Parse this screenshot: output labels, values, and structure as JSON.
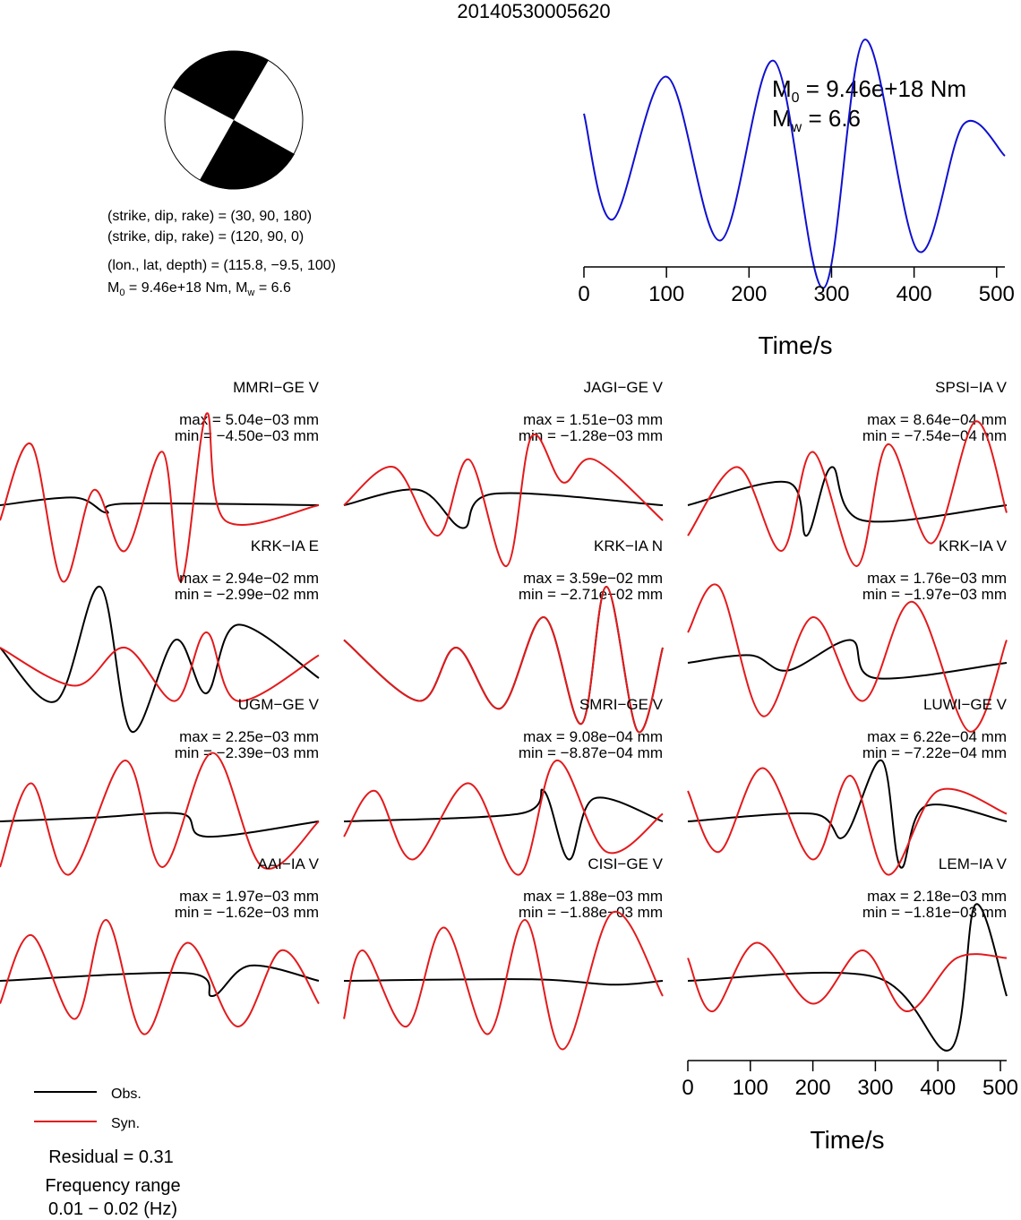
{
  "event_id": "20140530005620",
  "mechanism": {
    "line1": "(strike, dip, rake) = (30, 90, 180)",
    "line2": "(strike, dip, rake) = (120, 90, 0)",
    "location": "(lon., lat, depth) = (115.8, −9.5, 100)",
    "moment": {
      "m0": "M",
      "m0_sub": "0",
      "m0_val": " = 9.46e+18 Nm, ",
      "mw": "M",
      "mw_sub": "w",
      "mw_val": " = 6.6"
    }
  },
  "stf_label": {
    "m0": "M",
    "m0_sub": "0",
    "m0_val": " = 9.46e+18 Nm",
    "mw": "M",
    "mw_sub": "w",
    "mw_val": " = 6.6"
  },
  "legend": {
    "obs": "Obs.",
    "syn": "Syn."
  },
  "residual": "Residual = 0.31",
  "freq_label": "Frequency range",
  "freq_value": "0.01 − 0.02 (Hz)",
  "colors": {
    "obs": "#000000",
    "syn": "#e31a1c",
    "stf": "#1010d0",
    "beachball": "#000000"
  },
  "chart_data": [
    {
      "type": "line",
      "name": "source-time-function",
      "xlabel": "Time/s",
      "xlim": [
        0,
        510
      ],
      "xticks": [
        0,
        100,
        200,
        300,
        400,
        500
      ],
      "series": [
        {
          "x": [
            0,
            35,
            100,
            165,
            230,
            290,
            340,
            405,
            460,
            510
          ],
          "values": [
            0.45,
            -0.55,
            0.8,
            -0.75,
            0.95,
            -1.2,
            1.15,
            -0.85,
            0.35,
            0.05
          ]
        }
      ]
    },
    {
      "type": "line",
      "name": "waveform-fits",
      "xlabel": "Time/s",
      "xlim": [
        0,
        510
      ],
      "xticks": [
        0,
        100,
        200,
        300,
        400,
        500
      ],
      "stations": [
        {
          "label": "MMRI−GE V",
          "max": "max = 5.04e−03 mm",
          "min": "min = −4.50e−03 mm",
          "obs": {
            "x": [
              0,
              120,
              170,
              200,
              510
            ],
            "values": [
              0,
              0.1,
              -0.1,
              0.02,
              0
            ]
          },
          "syn": {
            "x": [
              0,
              50,
              100,
              150,
              200,
              260,
              290,
              330,
              360,
              510
            ],
            "values": [
              -0.2,
              0.8,
              -1.0,
              0.2,
              -0.6,
              0.7,
              -1.0,
              1.2,
              -0.2,
              0
            ]
          }
        },
        {
          "label": "JAGI−GE V",
          "max": "max = 1.51e−03 mm",
          "min": "min = −1.28e−03 mm",
          "obs": {
            "x": [
              0,
              120,
              190,
              240,
              510
            ],
            "values": [
              0,
              0.2,
              -0.3,
              0.15,
              0
            ]
          },
          "syn": {
            "x": [
              0,
              80,
              150,
              200,
              260,
              300,
              350,
              400,
              510
            ],
            "values": [
              0,
              0.5,
              -0.4,
              0.6,
              -0.8,
              0.9,
              0.3,
              0.6,
              -0.2
            ]
          }
        },
        {
          "label": "SPSI−IA V",
          "max": "max = 8.64e−04 mm",
          "min": "min = −7.54e−04 mm",
          "obs": {
            "x": [
              0,
              160,
              190,
              230,
              280,
              510
            ],
            "values": [
              0,
              0.3,
              -0.4,
              0.5,
              -0.2,
              0
            ]
          },
          "syn": {
            "x": [
              0,
              80,
              150,
              200,
              270,
              320,
              390,
              460,
              510
            ],
            "values": [
              -0.4,
              0.5,
              -0.6,
              0.7,
              -0.8,
              0.8,
              -0.5,
              1.1,
              -0.1
            ]
          }
        },
        {
          "label": "KRK−IA E",
          "max": "max = 2.94e−02 mm",
          "min": "min = −2.99e−02 mm",
          "obs": {
            "x": [
              0,
              90,
              160,
              210,
              280,
              330,
              380,
              510
            ],
            "values": [
              0.2,
              -0.5,
              1.0,
              -0.9,
              0.3,
              -0.4,
              0.5,
              -0.2
            ]
          },
          "syn": {
            "x": [
              0,
              120,
              200,
              280,
              330,
              380,
              510
            ],
            "values": [
              0.2,
              -0.3,
              0.2,
              -0.5,
              0.4,
              -0.5,
              0.1
            ]
          }
        },
        {
          "label": "KRK−IA N",
          "max": "max = 3.59e−02 mm",
          "min": "min = −2.71e−02 mm",
          "obs": {
            "x": [
              0,
              120,
              180,
              250,
              320,
              380,
              420,
              470,
              510
            ],
            "values": [
              0.3,
              -0.5,
              0.2,
              -0.6,
              0.6,
              -0.8,
              1.0,
              -0.9,
              0.2
            ]
          },
          "syn": {
            "x": [
              0,
              120,
              180,
              250,
              320,
              380,
              420,
              470,
              510
            ],
            "values": [
              0.3,
              -0.5,
              0.2,
              -0.6,
              0.6,
              -0.8,
              1.0,
              -0.9,
              0.2
            ]
          }
        },
        {
          "label": "KRK−IA V",
          "max": "max = 1.76e−03 mm",
          "min": "min = −1.97e−03 mm",
          "obs": {
            "x": [
              0,
              100,
              160,
              260,
              300,
              510
            ],
            "values": [
              0,
              0.1,
              -0.1,
              0.3,
              -0.2,
              0
            ]
          },
          "syn": {
            "x": [
              0,
              50,
              120,
              200,
              280,
              360,
              450,
              510
            ],
            "values": [
              0.4,
              1.0,
              -0.7,
              0.6,
              -0.5,
              0.8,
              -0.9,
              0.3
            ]
          }
        },
        {
          "label": "UGM−GE V",
          "max": "max = 2.25e−03 mm",
          "min": "min = −2.39e−03 mm",
          "obs": {
            "x": [
              0,
              150,
              290,
              330,
              510
            ],
            "values": [
              0,
              0.05,
              0.1,
              -0.2,
              0
            ]
          },
          "syn": {
            "x": [
              0,
              50,
              110,
              200,
              260,
              340,
              420,
              510
            ],
            "values": [
              -0.6,
              0.5,
              -0.7,
              0.8,
              -0.6,
              0.9,
              -0.6,
              0
            ]
          }
        },
        {
          "label": "SMRI−GE V",
          "max": "max = 9.08e−04 mm",
          "min": "min = −8.87e−04 mm",
          "obs": {
            "x": [
              0,
              280,
              320,
              360,
              400,
              510
            ],
            "values": [
              0,
              0.1,
              0.4,
              -0.5,
              0.3,
              0
            ]
          },
          "syn": {
            "x": [
              0,
              50,
              110,
              200,
              280,
              340,
              420,
              510
            ],
            "values": [
              -0.2,
              0.4,
              -0.5,
              0.5,
              -0.7,
              0.8,
              -0.4,
              0.1
            ]
          }
        },
        {
          "label": "LUWI−GE V",
          "max": "max = 6.22e−04 mm",
          "min": "min = −7.22e−04 mm",
          "obs": {
            "x": [
              0,
              200,
              250,
              310,
              340,
              380,
              510
            ],
            "values": [
              0,
              0.1,
              -0.2,
              0.8,
              -0.6,
              0.2,
              0
            ]
          },
          "syn": {
            "x": [
              0,
              50,
              120,
              200,
              260,
              320,
              400,
              510
            ],
            "values": [
              0.4,
              -0.4,
              0.7,
              -0.5,
              0.6,
              -0.7,
              0.4,
              0.1
            ]
          }
        },
        {
          "label": "AAI−IA V",
          "max": "max = 1.97e−03 mm",
          "min": "min = −1.62e−03 mm",
          "obs": {
            "x": [
              0,
              300,
              340,
              400,
              510
            ],
            "values": [
              0,
              0.1,
              -0.2,
              0.2,
              0
            ]
          },
          "syn": {
            "x": [
              0,
              50,
              120,
              170,
              230,
              300,
              380,
              450,
              510
            ],
            "values": [
              -0.3,
              0.6,
              -0.5,
              0.8,
              -0.7,
              0.5,
              -0.6,
              0.4,
              -0.3
            ]
          }
        },
        {
          "label": "CISI−GE V",
          "max": "max = 1.88e−03 mm",
          "min": "min = −1.88e−03 mm",
          "obs": {
            "x": [
              0,
              300,
              430,
              510
            ],
            "values": [
              0,
              0.02,
              -0.05,
              0
            ]
          },
          "syn": {
            "x": [
              0,
              30,
              100,
              160,
              230,
              290,
              350,
              430,
              510
            ],
            "values": [
              -0.5,
              0.4,
              -0.6,
              0.7,
              -0.7,
              0.8,
              -0.9,
              0.9,
              -0.2
            ]
          }
        },
        {
          "label": "LEM−IA V",
          "max": "max = 2.18e−03 mm",
          "min": "min = −1.81e−03 mm",
          "obs": {
            "x": [
              0,
              300,
              420,
              460,
              510
            ],
            "values": [
              0,
              0.05,
              -0.9,
              1.0,
              -0.2
            ]
          },
          "syn": {
            "x": [
              0,
              40,
              110,
              200,
              280,
              350,
              430,
              510
            ],
            "values": [
              0.3,
              -0.4,
              0.5,
              -0.3,
              0.4,
              -0.4,
              0.3,
              0.3
            ]
          }
        }
      ]
    }
  ]
}
